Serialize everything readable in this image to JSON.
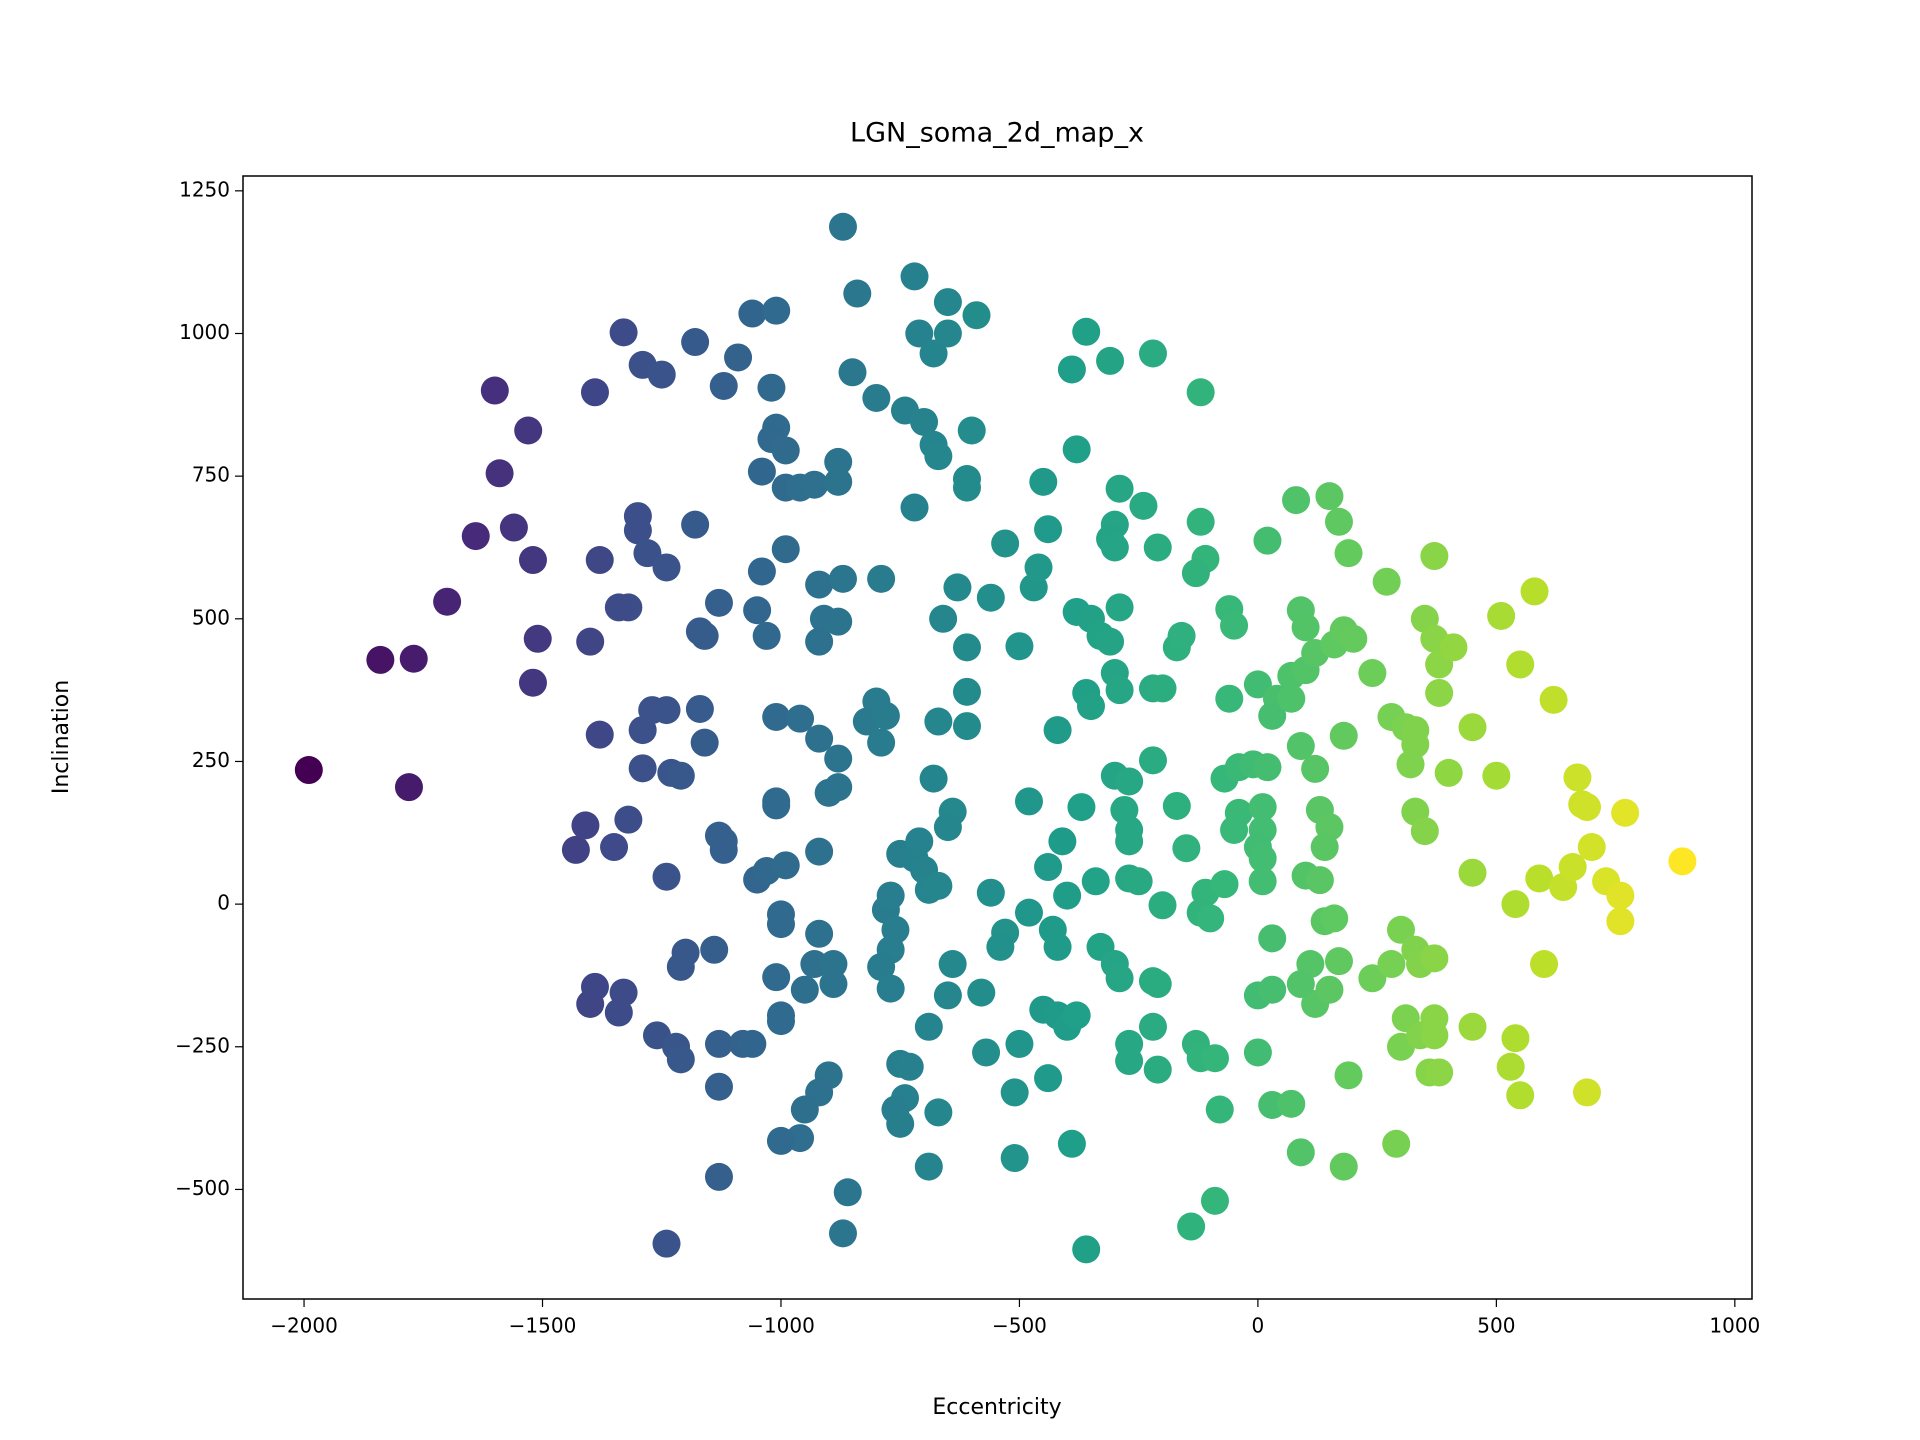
{
  "chart_data": {
    "type": "scatter",
    "title": "LGN_soma_2d_map_x",
    "xlabel": "Eccentricity",
    "ylabel": "Inclination",
    "colormap": "viridis",
    "xlim": [
      -2128,
      1036
    ],
    "ylim": [
      -692,
      1276
    ],
    "xticks": [
      {
        "value": -2000,
        "label": "−2000"
      },
      {
        "value": -1500,
        "label": "−1500"
      },
      {
        "value": -1000,
        "label": "−1000"
      },
      {
        "value": -500,
        "label": "−500"
      },
      0,
      500,
      1000
    ],
    "yticks": [
      {
        "value": -500,
        "label": "−500"
      },
      {
        "value": -250,
        "label": "−250"
      },
      0,
      250,
      500,
      750,
      1000,
      1250
    ],
    "x": [
      -1990,
      -1840,
      -1770,
      -1780,
      -1700,
      -1640,
      -1600,
      -1590,
      -1560,
      -1530,
      -1520,
      -1510,
      -1520,
      -1390,
      -1400,
      -1430,
      -1410,
      -1380,
      -1380,
      -1350,
      -1320,
      -1330,
      -1290,
      -1250,
      -1300,
      -1300,
      -1280,
      -1240,
      -1320,
      -1340,
      -1290,
      -1270,
      -1240,
      -1290,
      -1230,
      -1210,
      -1240,
      -1400,
      -1390,
      -1330,
      -1340,
      -1260,
      -1220,
      -1210,
      -1240,
      -1180,
      -1120,
      -1090,
      -1180,
      -1130,
      -1170,
      -1160,
      -1170,
      -1160,
      -1130,
      -1120,
      -1120,
      -1200,
      -1210,
      -1140,
      -1130,
      -1080,
      -1060,
      -1130,
      -1130,
      -1060,
      -1010,
      -1020,
      -1010,
      -1020,
      -990,
      -1040,
      -990,
      -960,
      -930,
      -880,
      -880,
      -990,
      -1040,
      -1050,
      -1030,
      -920,
      -870,
      -910,
      -880,
      -920,
      -1010,
      -960,
      -920,
      -880,
      -900,
      -880,
      -1010,
      -1010,
      -1050,
      -1030,
      -990,
      -920,
      -1000,
      -1000,
      -1010,
      -950,
      -1000,
      -1000,
      -920,
      -930,
      -890,
      -890,
      -900,
      -920,
      -950,
      -960,
      -1000,
      -860,
      -870,
      -870,
      -840,
      -850,
      -800,
      -740,
      -700,
      -680,
      -670,
      -720,
      -720,
      -710,
      -680,
      -650,
      -650,
      -590,
      -600,
      -610,
      -610,
      -790,
      -630,
      -660,
      -610,
      -800,
      -820,
      -790,
      -780,
      -670,
      -610,
      -610,
      -680,
      -640,
      -650,
      -780,
      -770,
      -750,
      -720,
      -710,
      -700,
      -690,
      -670,
      -760,
      -770,
      -790,
      -770,
      -640,
      -650,
      -690,
      -750,
      -740,
      -730,
      -760,
      -750,
      -670,
      -690,
      -580,
      -560,
      -530,
      -470,
      -460,
      -450,
      -440,
      -420,
      -380,
      -390,
      -360,
      -310,
      -500,
      -480,
      -560,
      -530,
      -540,
      -480,
      -430,
      -420,
      -440,
      -410,
      -400,
      -370,
      -340,
      -450,
      -420,
      -400,
      -380,
      -570,
      -500,
      -510,
      -440,
      -510,
      -390,
      -360,
      -380,
      -350,
      -330,
      -310,
      -290,
      -300,
      -290,
      -360,
      -350,
      -290,
      -300,
      -310,
      -300,
      -240,
      -210,
      -300,
      -270,
      -280,
      -270,
      -270,
      -270,
      -250,
      -330,
      -300,
      -290,
      -220,
      -210,
      -200,
      -270,
      -270,
      -220,
      -210,
      -220,
      -120,
      -120,
      -110,
      -130,
      -170,
      -160,
      -220,
      -200,
      -220,
      -170,
      -150,
      -110,
      -120,
      -100,
      -130,
      -120,
      -90,
      -140,
      -90,
      -80,
      -60,
      -50,
      -60,
      -70,
      -40,
      -50,
      -70,
      -40,
      -10,
      20,
      10,
      10,
      0,
      10,
      10,
      0,
      30,
      30,
      70,
      0,
      30,
      20,
      80,
      0,
      40,
      30,
      70,
      70,
      100,
      120,
      90,
      100,
      90,
      120,
      130,
      150,
      140,
      100,
      130,
      140,
      160,
      110,
      120,
      150,
      190,
      170,
      180,
      90,
      90,
      150,
      170,
      190,
      160,
      180,
      200,
      240,
      180,
      310,
      240,
      280,
      300,
      330,
      340,
      370,
      290,
      300,
      340,
      370,
      370,
      360,
      380,
      270,
      280,
      310,
      330,
      330,
      320,
      330,
      350,
      350,
      370,
      370,
      380,
      380,
      410,
      400,
      450,
      450,
      450,
      510,
      550,
      500,
      540,
      580,
      620,
      590,
      600,
      540,
      530,
      550,
      640,
      660,
      670,
      680,
      690,
      700,
      730,
      760,
      760,
      770,
      690,
      890
    ],
    "y": [
      235,
      428,
      430,
      205,
      530,
      645,
      900,
      755,
      660,
      830,
      603,
      465,
      388,
      897,
      460,
      95,
      138,
      297,
      603,
      100,
      148,
      1002,
      945,
      928,
      680,
      655,
      615,
      590,
      520,
      520,
      305,
      340,
      340,
      238,
      230,
      225,
      48,
      -175,
      -145,
      -155,
      -190,
      -230,
      -250,
      -272,
      -595,
      985,
      908,
      958,
      665,
      528,
      478,
      470,
      342,
      283,
      120,
      110,
      95,
      -85,
      -110,
      -80,
      -245,
      -245,
      -245,
      -320,
      -478,
      1035,
      1040,
      905,
      835,
      815,
      795,
      758,
      730,
      730,
      735,
      740,
      775,
      622,
      583,
      515,
      470,
      560,
      570,
      500,
      495,
      460,
      328,
      325,
      290,
      255,
      195,
      205,
      180,
      173,
      43,
      58,
      68,
      92,
      -18,
      -35,
      -128,
      -150,
      -195,
      -205,
      -52,
      -105,
      -105,
      -140,
      -300,
      -330,
      -360,
      -410,
      -415,
      -505,
      -577,
      1187,
      1070,
      932,
      887,
      865,
      845,
      805,
      785,
      695,
      1100,
      1000,
      965,
      1055,
      1000,
      1032,
      830,
      745,
      730,
      570,
      555,
      500,
      450,
      355,
      320,
      283,
      330,
      320,
      312,
      372,
      220,
      162,
      135,
      -10,
      15,
      88,
      80,
      110,
      60,
      25,
      32,
      -45,
      -80,
      -110,
      -148,
      -105,
      -160,
      -215,
      -280,
      -340,
      -285,
      -360,
      -385,
      -365,
      -460,
      -155,
      537,
      632,
      555,
      590,
      740,
      657,
      305,
      797,
      937,
      1003,
      952,
      452,
      180,
      20,
      -50,
      -75,
      -15,
      -45,
      -75,
      65,
      110,
      15,
      170,
      40,
      -185,
      -195,
      -215,
      -195,
      -260,
      -245,
      -330,
      -305,
      -445,
      -420,
      -605,
      512,
      500,
      470,
      460,
      520,
      405,
      375,
      370,
      347,
      728,
      665,
      640,
      625,
      698,
      625,
      225,
      215,
      165,
      130,
      110,
      45,
      40,
      -75,
      -105,
      -130,
      -135,
      -140,
      -2,
      -245,
      -275,
      -215,
      -290,
      965,
      897,
      670,
      605,
      580,
      450,
      470,
      378,
      378,
      252,
      172,
      98,
      20,
      -15,
      -25,
      -245,
      -270,
      -270,
      -565,
      -520,
      -360,
      517,
      488,
      360,
      220,
      160,
      130,
      35,
      240,
      245,
      240,
      170,
      130,
      100,
      80,
      40,
      -160,
      -150,
      -352,
      -350,
      -260,
      -60,
      637,
      708,
      385,
      360,
      330,
      360,
      400,
      410,
      440,
      515,
      485,
      277,
      237,
      165,
      135,
      100,
      50,
      42,
      -30,
      -25,
      -105,
      -175,
      -150,
      -300,
      -100,
      -460,
      -435,
      -140,
      715,
      670,
      615,
      455,
      480,
      465,
      405,
      295,
      -200,
      -130,
      -105,
      -45,
      -80,
      -105,
      -95,
      -420,
      -250,
      -230,
      -230,
      -200,
      -295,
      -295,
      565,
      328,
      310,
      305,
      280,
      245,
      162,
      128,
      500,
      610,
      465,
      420,
      370,
      450,
      230,
      310,
      55,
      -215,
      505,
      420,
      225,
      0,
      548,
      358,
      45,
      -105,
      -235,
      -285,
      -335,
      30,
      65,
      222,
      175,
      170,
      100,
      40,
      15,
      -30,
      160,
      -330,
      75
    ]
  }
}
